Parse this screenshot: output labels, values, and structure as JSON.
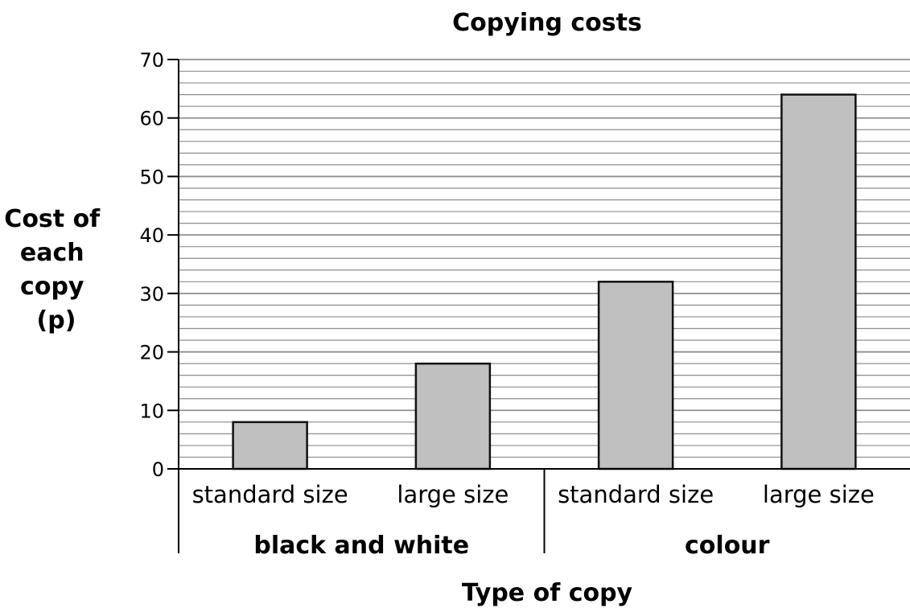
{
  "chart_data": {
    "type": "bar",
    "title": "Copying costs",
    "xlabel": "Type of copy",
    "ylabel_lines": [
      "Cost of",
      "each",
      "copy",
      "(p)"
    ],
    "categories": [
      "standard size",
      "large size",
      "standard size",
      "large size"
    ],
    "groups": [
      {
        "label": "black and white",
        "categories": [
          0,
          1
        ]
      },
      {
        "label": "colour",
        "categories": [
          2,
          3
        ]
      }
    ],
    "values": [
      8,
      18,
      32,
      64
    ],
    "ylim": [
      0,
      70
    ],
    "yticks": [
      0,
      10,
      20,
      30,
      40,
      50,
      60,
      70
    ],
    "minor_gridline_step": 2,
    "grid": true,
    "bar_color": "#c0c0c1",
    "grid_color": "#8e8e8e"
  }
}
